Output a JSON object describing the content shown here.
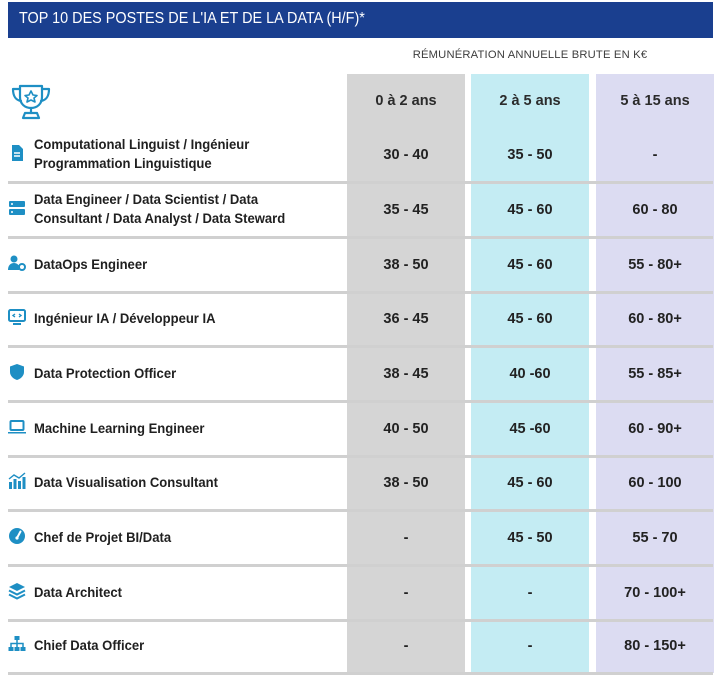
{
  "title": "TOP 10 DES POSTES DE L'IA ET DE LA DATA (H/F)*",
  "subtitle": "RÉMUNÉRATION ANNUELLE BRUTE EN K€",
  "colors": {
    "title_bg": "#1a3f8f",
    "icon": "#1e8fc4",
    "col_junior": "#d5d5d5",
    "col_mid": "#c4ecf3",
    "col_senior": "#dcdcf2"
  },
  "header_icon": "trophy-icon",
  "columns": [
    "0 à 2 ans",
    "2 à 5 ans",
    "5 à 15 ans"
  ],
  "rows": [
    {
      "icon": "document-icon",
      "label": "Computational Linguist / Ingénieur Programmation Linguistique",
      "values": [
        "30 - 40",
        "35 - 50",
        "-"
      ]
    },
    {
      "icon": "server-icon",
      "label": "Data Engineer /  Data Scientist / Data Consultant / Data Analyst / Data Steward",
      "values": [
        "35 - 45",
        "45 - 60",
        "60 - 80"
      ]
    },
    {
      "icon": "user-gear-icon",
      "label": "DataOps Engineer",
      "values": [
        "38 - 50",
        "45 - 60",
        "55 - 80+"
      ]
    },
    {
      "icon": "code-monitor-icon",
      "label": "Ingénieur IA / Développeur IA",
      "values": [
        "36 - 45",
        "45 - 60",
        "60 - 80+"
      ]
    },
    {
      "icon": "shield-icon",
      "label": "Data Protection Officer",
      "values": [
        "38 - 45",
        "40 -60",
        "55 - 85+"
      ]
    },
    {
      "icon": "laptop-icon",
      "label": "Machine Learning Engineer",
      "values": [
        "40 - 50",
        "45 -60",
        "60 - 90+"
      ]
    },
    {
      "icon": "bar-chart-icon",
      "label": "Data Visualisation Consultant",
      "values": [
        "38 - 50",
        "45 - 60",
        "60 - 100"
      ]
    },
    {
      "icon": "gauge-icon",
      "label": "Chef de Projet BI/Data",
      "values": [
        "-",
        "45 - 50",
        "55 - 70"
      ]
    },
    {
      "icon": "layers-icon",
      "label": "Data Architect",
      "values": [
        "-",
        "-",
        "70 - 100+"
      ]
    },
    {
      "icon": "org-chart-icon",
      "label": "Chief Data Officer",
      "values": [
        "-",
        "-",
        "80 - 150+"
      ]
    }
  ]
}
